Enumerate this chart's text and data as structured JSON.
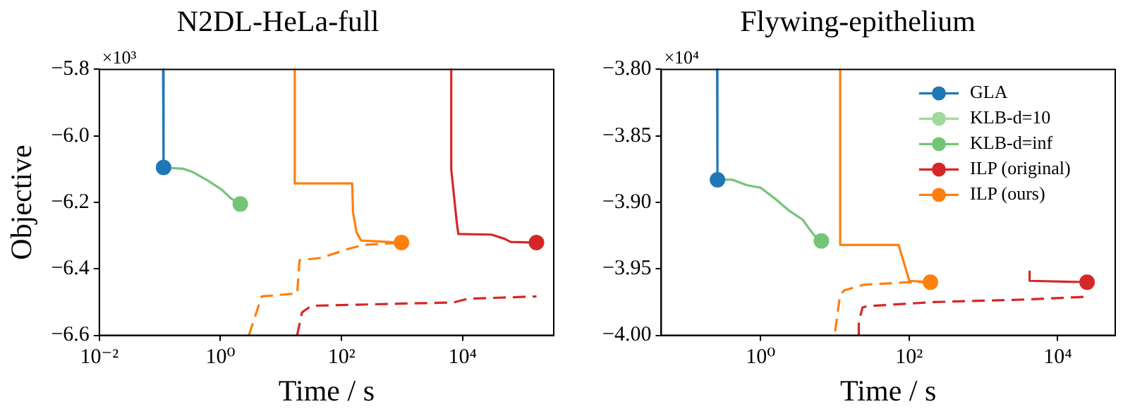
{
  "chart_data": [
    {
      "type": "line",
      "title": "N2DL-HeLa-full",
      "xlabel": "Time / s",
      "ylabel": "Objective",
      "annotations": [
        "×10³"
      ],
      "log": "x",
      "grid": false,
      "legend": false,
      "xlim": [
        0.01,
        320000
      ],
      "xticks": [
        {
          "value": 0.01,
          "label": "10⁻²"
        },
        {
          "value": 1,
          "label": "10⁰"
        },
        {
          "value": 100,
          "label": "10²"
        },
        {
          "value": 10000,
          "label": "10⁴"
        }
      ],
      "ylim": [
        -6.6,
        -5.8
      ],
      "yticks": [
        {
          "value": -5.8,
          "label": "−5.8"
        },
        {
          "value": -6.0,
          "label": "−6.0"
        },
        {
          "value": -6.2,
          "label": "−6.2"
        },
        {
          "value": -6.4,
          "label": "−6.4"
        },
        {
          "value": -6.6,
          "label": "−6.6"
        }
      ],
      "series": [
        {
          "color": "#1f77b4",
          "marker": "none",
          "line_style": "solid",
          "x": [
            0.113,
            0.115
          ],
          "values": [
            -5.8,
            -6.095
          ]
        },
        {
          "color": "#74c476",
          "marker": "none",
          "line_style": "solid",
          "x": [
            0.115,
            0.245,
            0.35,
            0.6,
            1.04,
            1.49,
            2.13
          ],
          "values": [
            -6.095,
            -6.099,
            -6.109,
            -6.133,
            -6.161,
            -6.188,
            -6.205
          ]
        },
        {
          "color": "#d62728",
          "marker": "none",
          "line_style": "solid",
          "x": [
            6490,
            6490,
            8000,
            8500,
            30000,
            50000,
            62000,
            166000
          ],
          "values": [
            -5.8,
            -6.1,
            -6.26,
            -6.295,
            -6.297,
            -6.31,
            -6.319,
            -6.321
          ]
        },
        {
          "color": "#ff7f0e",
          "marker": "none",
          "line_style": "solid",
          "x": [
            16.9,
            16.9,
            150,
            155,
            177,
            211,
            977
          ],
          "values": [
            -5.8,
            -6.143,
            -6.143,
            -6.23,
            -6.29,
            -6.315,
            -6.321
          ]
        },
        {
          "color": "#d62728",
          "marker": "none",
          "line_style": "dashed",
          "x": [
            18.5,
            22.2,
            31.8,
            7100,
            12200,
            166000
          ],
          "values": [
            -6.6,
            -6.531,
            -6.511,
            -6.501,
            -6.49,
            -6.483
          ]
        },
        {
          "color": "#ff7f0e",
          "marker": "none",
          "line_style": "dashed",
          "x": [
            2.95,
            4.8,
            18.5,
            20.3,
            45.7,
            135,
            231,
            977
          ],
          "values": [
            -6.6,
            -6.483,
            -6.474,
            -6.374,
            -6.367,
            -6.339,
            -6.328,
            -6.321
          ]
        },
        {
          "type": "scatter",
          "color": "#1f77b4",
          "marker": "circle",
          "x": [
            0.115
          ],
          "values": [
            -6.095
          ]
        },
        {
          "type": "scatter",
          "color": "#74c476",
          "marker": "circle",
          "x": [
            2.13
          ],
          "values": [
            -6.205
          ]
        },
        {
          "type": "scatter",
          "color": "#d62728",
          "marker": "circle",
          "x": [
            166000
          ],
          "values": [
            -6.321
          ]
        },
        {
          "type": "scatter",
          "color": "#ff7f0e",
          "marker": "circle",
          "x": [
            977
          ],
          "values": [
            -6.321
          ]
        }
      ]
    },
    {
      "type": "line",
      "title": "Flywing-epithelium",
      "xlabel": "Time / s",
      "annotations": [
        "×10⁴"
      ],
      "log": "x",
      "grid": false,
      "legend": "top right",
      "xlim": [
        0.046,
        59600
      ],
      "xticks": [
        {
          "value": 1,
          "label": "10⁰"
        },
        {
          "value": 100,
          "label": "10²"
        },
        {
          "value": 10000,
          "label": "10⁴"
        }
      ],
      "ylim": [
        -4.0,
        -3.8
      ],
      "yticks": [
        {
          "value": -3.8,
          "label": "−3.80"
        },
        {
          "value": -3.85,
          "label": "−3.85"
        },
        {
          "value": -3.9,
          "label": "−3.90"
        },
        {
          "value": -3.95,
          "label": "−3.95"
        },
        {
          "value": -4.0,
          "label": "−4.00"
        }
      ],
      "series": [
        {
          "color": "#1f77b4",
          "marker": "none",
          "line_style": "solid",
          "x": [
            0.26,
            0.262,
            0.263
          ],
          "values": [
            -3.8,
            -3.87,
            -3.883
          ]
        },
        {
          "color": "#74c476",
          "marker": "none",
          "line_style": "solid",
          "x": [
            0.263,
            0.42,
            0.647,
            1,
            1.545,
            2.39,
            3.69,
            4.27,
            5.3,
            6.59
          ],
          "values": [
            -3.883,
            -3.883,
            -3.887,
            -3.889,
            -3.897,
            -3.906,
            -3.913,
            -3.918,
            -3.925,
            -3.929
          ]
        },
        {
          "color": "#d62728",
          "marker": "none",
          "line_style": "solid",
          "x": [
            4190,
            4190,
            24900
          ],
          "values": [
            -3.952,
            -3.959,
            -3.96
          ]
        },
        {
          "color": "#ff7f0e",
          "marker": "none",
          "line_style": "solid",
          "x": [
            11.8,
            11.8,
            72.1,
            100.7,
            193.6
          ],
          "values": [
            -3.8,
            -3.932,
            -3.932,
            -3.959,
            -3.96
          ]
        },
        {
          "color": "#d62728",
          "marker": "none",
          "line_style": "dashed",
          "x": [
            21,
            21,
            23.6,
            28.1,
            214,
            3900,
            24900
          ],
          "values": [
            -4.0,
            -3.99,
            -3.979,
            -3.978,
            -3.975,
            -3.973,
            -3.971
          ]
        },
        {
          "color": "#ff7f0e",
          "marker": "none",
          "line_style": "dashed",
          "x": [
            10.1,
            11.8,
            13.6,
            24.3,
            100,
            193.6
          ],
          "values": [
            -3.997,
            -3.969,
            -3.966,
            -3.962,
            -3.96,
            -3.96
          ]
        },
        {
          "type": "scatter",
          "name": "GLA",
          "color": "#1f77b4",
          "marker": "circle",
          "x": [
            0.263
          ],
          "values": [
            -3.883
          ]
        },
        {
          "type": "scatter",
          "name": "KLB-d=10",
          "color": "#a1d99b",
          "marker": "circle"
        },
        {
          "type": "scatter",
          "name": "KLB-d=inf",
          "color": "#74c476",
          "marker": "circle",
          "x": [
            6.59
          ],
          "values": [
            -3.929
          ]
        },
        {
          "type": "scatter",
          "name": "ILP (original)",
          "color": "#d62728",
          "marker": "circle",
          "x": [
            24900
          ],
          "values": [
            -3.96
          ]
        },
        {
          "type": "scatter",
          "name": "ILP (ours)",
          "color": "#ff7f0e",
          "marker": "circle",
          "x": [
            193.6
          ],
          "values": [
            -3.96
          ]
        }
      ]
    }
  ]
}
